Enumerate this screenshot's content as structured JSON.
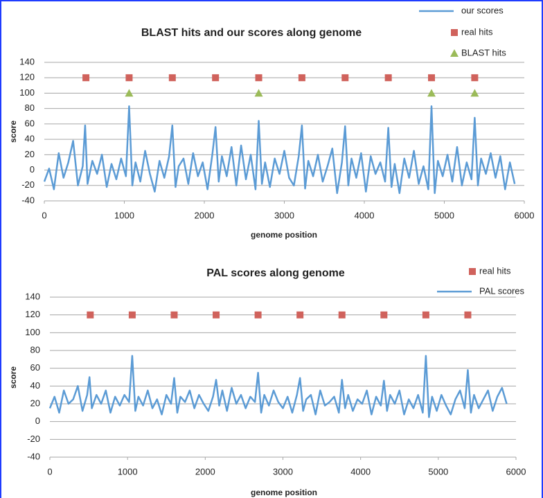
{
  "chart_data": [
    {
      "type": "line",
      "title": "BLAST hits and our scores along genome",
      "x_label": "genome position",
      "y_label": "score",
      "xlim": [
        0,
        6000
      ],
      "xticks": [
        0,
        1000,
        2000,
        3000,
        4000,
        5000,
        6000
      ],
      "ylim": [
        -40,
        140
      ],
      "yticks": [
        -40,
        -20,
        0,
        20,
        40,
        60,
        80,
        100,
        120,
        140
      ],
      "grid": true,
      "legend": "top-right",
      "series": [
        {
          "name": "our scores",
          "color": "#5b9bd5",
          "style": "line",
          "x": [
            0,
            60,
            120,
            180,
            240,
            300,
            360,
            420,
            480,
            510,
            540,
            600,
            660,
            720,
            780,
            840,
            900,
            960,
            1020,
            1060,
            1100,
            1140,
            1200,
            1260,
            1320,
            1380,
            1440,
            1500,
            1560,
            1600,
            1640,
            1680,
            1740,
            1800,
            1860,
            1920,
            1980,
            2040,
            2100,
            2140,
            2180,
            2220,
            2280,
            2340,
            2400,
            2460,
            2520,
            2580,
            2640,
            2680,
            2720,
            2760,
            2820,
            2880,
            2940,
            3000,
            3060,
            3120,
            3180,
            3220,
            3260,
            3300,
            3360,
            3420,
            3480,
            3540,
            3600,
            3660,
            3720,
            3760,
            3800,
            3840,
            3900,
            3960,
            4020,
            4080,
            4140,
            4200,
            4260,
            4300,
            4340,
            4380,
            4440,
            4500,
            4560,
            4620,
            4680,
            4740,
            4800,
            4840,
            4880,
            4920,
            4980,
            5040,
            5100,
            5160,
            5220,
            5280,
            5340,
            5380,
            5420,
            5460,
            5520,
            5580,
            5640,
            5700,
            5760,
            5820,
            5880
          ],
          "values": [
            -15,
            2,
            -25,
            22,
            -10,
            10,
            38,
            -20,
            5,
            58,
            -18,
            12,
            -5,
            20,
            -22,
            8,
            -12,
            15,
            -8,
            83,
            -20,
            10,
            -15,
            25,
            -5,
            -28,
            12,
            -10,
            18,
            58,
            -22,
            5,
            15,
            -18,
            22,
            -8,
            10,
            -25,
            20,
            56,
            -15,
            18,
            -8,
            30,
            -20,
            32,
            -12,
            20,
            -25,
            64,
            -18,
            10,
            -22,
            15,
            -5,
            25,
            -10,
            -20,
            18,
            58,
            -24,
            12,
            -8,
            20,
            -15,
            5,
            28,
            -30,
            10,
            57,
            -20,
            15,
            -10,
            22,
            -28,
            18,
            -5,
            10,
            -15,
            55,
            -22,
            8,
            -30,
            15,
            -10,
            25,
            -18,
            5,
            -25,
            83,
            -30,
            12,
            -8,
            20,
            -15,
            30,
            -20,
            10,
            -12,
            68,
            -20,
            15,
            -5,
            22,
            -10,
            18,
            -25,
            10,
            -18
          ]
        },
        {
          "name": "real hits",
          "color": "#d0625c",
          "style": "square",
          "x": [
            520,
            1060,
            1600,
            2140,
            2680,
            3220,
            3760,
            4300,
            4840,
            5380
          ],
          "values": [
            120,
            120,
            120,
            120,
            120,
            120,
            120,
            120,
            120,
            120
          ]
        },
        {
          "name": "BLAST hits",
          "color": "#9bbb59",
          "style": "triangle",
          "x": [
            1060,
            2680,
            4840,
            5380
          ],
          "values": [
            100,
            100,
            100,
            100
          ]
        }
      ]
    },
    {
      "type": "line",
      "title": "PAL scores along genome",
      "x_label": "genome position",
      "y_label": "score",
      "xlim": [
        0,
        6000
      ],
      "xticks": [
        0,
        1000,
        2000,
        3000,
        4000,
        5000,
        6000
      ],
      "ylim": [
        -40,
        140
      ],
      "yticks": [
        -40,
        -20,
        0,
        20,
        40,
        60,
        80,
        100,
        120,
        140
      ],
      "grid": true,
      "legend": "top-right",
      "series": [
        {
          "name": "real hits",
          "color": "#d0625c",
          "style": "square",
          "x": [
            520,
            1060,
            1600,
            2140,
            2680,
            3220,
            3760,
            4300,
            4840,
            5380
          ],
          "values": [
            120,
            120,
            120,
            120,
            120,
            120,
            120,
            120,
            120,
            120
          ]
        },
        {
          "name": "PAL scores",
          "color": "#5b9bd5",
          "style": "line",
          "x": [
            0,
            60,
            120,
            180,
            240,
            300,
            360,
            420,
            480,
            510,
            540,
            600,
            660,
            720,
            780,
            840,
            900,
            960,
            1020,
            1060,
            1100,
            1140,
            1200,
            1260,
            1320,
            1380,
            1440,
            1500,
            1560,
            1600,
            1640,
            1680,
            1740,
            1800,
            1860,
            1920,
            1980,
            2040,
            2100,
            2140,
            2180,
            2220,
            2280,
            2340,
            2400,
            2460,
            2520,
            2580,
            2640,
            2680,
            2720,
            2760,
            2820,
            2880,
            2940,
            3000,
            3060,
            3120,
            3180,
            3220,
            3260,
            3300,
            3360,
            3420,
            3480,
            3540,
            3600,
            3660,
            3720,
            3760,
            3800,
            3840,
            3900,
            3960,
            4020,
            4080,
            4140,
            4200,
            4260,
            4300,
            4340,
            4380,
            4440,
            4500,
            4560,
            4620,
            4680,
            4740,
            4800,
            4840,
            4880,
            4920,
            4980,
            5040,
            5100,
            5160,
            5220,
            5280,
            5340,
            5380,
            5420,
            5460,
            5520,
            5580,
            5640,
            5700,
            5760,
            5820,
            5880
          ],
          "values": [
            15,
            28,
            10,
            35,
            20,
            25,
            40,
            12,
            30,
            50,
            15,
            30,
            20,
            35,
            10,
            28,
            18,
            30,
            22,
            74,
            12,
            28,
            18,
            35,
            15,
            25,
            8,
            30,
            20,
            49,
            10,
            28,
            22,
            35,
            15,
            30,
            20,
            12,
            28,
            47,
            18,
            35,
            12,
            38,
            20,
            30,
            15,
            28,
            22,
            55,
            10,
            30,
            18,
            35,
            22,
            15,
            28,
            10,
            30,
            49,
            12,
            25,
            30,
            8,
            35,
            18,
            22,
            28,
            10,
            47,
            15,
            30,
            12,
            25,
            20,
            35,
            8,
            28,
            18,
            46,
            12,
            30,
            20,
            35,
            8,
            25,
            15,
            30,
            10,
            74,
            5,
            28,
            12,
            30,
            18,
            8,
            25,
            35,
            15,
            58,
            10,
            30,
            15,
            25,
            35,
            12,
            28,
            38,
            20
          ]
        }
      ]
    }
  ]
}
